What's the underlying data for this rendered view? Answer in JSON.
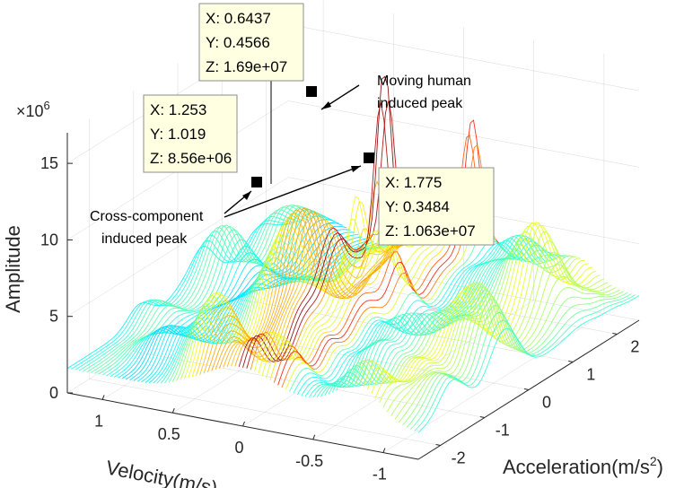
{
  "chart_data": {
    "type": "surface3d",
    "title": "",
    "xlabel": "Velocity(m/s)",
    "ylabel": "Acceleration(m/s2)",
    "zlabel": "Amplitude",
    "zscale_label": "×10",
    "zscale_exponent": "6",
    "x_ticks": [
      "1",
      "0.5",
      "0",
      "-0.5",
      "-1"
    ],
    "y_ticks": [
      "-2",
      "-1",
      "0",
      "1",
      "2"
    ],
    "z_ticks": [
      "0",
      "5",
      "10",
      "15"
    ],
    "xlim": [
      -1.25,
      1.25
    ],
    "ylim": [
      -2.5,
      2.5
    ],
    "zlim": [
      0,
      17
    ],
    "colormap": [
      "#0000ff",
      "#00ffff",
      "#ffff00",
      "#ff0000",
      "#800000"
    ],
    "peaks": [
      {
        "x": 0.6437,
        "y": 0.4566,
        "z": 16.9
      },
      {
        "x": 1.253,
        "y": 1.019,
        "z": 8.56
      },
      {
        "x": 1.775,
        "y": 0.3484,
        "z": 10.63
      }
    ],
    "datatips": [
      {
        "x_text": "X: 0.6437",
        "y_text": "Y: 0.4566",
        "z_text": "Z: 1.69e+07"
      },
      {
        "x_text": "X: 1.253",
        "y_text": "Y: 1.019",
        "z_text": "Z: 8.56e+06"
      },
      {
        "x_text": "X: 1.775",
        "y_text": "Y: 0.3484",
        "z_text": "Z: 1.063e+07"
      }
    ],
    "annotations": [
      {
        "line1": "Moving human",
        "line2": "induced peak"
      },
      {
        "line1": "Cross-component",
        "line2": "induced peak"
      }
    ]
  }
}
